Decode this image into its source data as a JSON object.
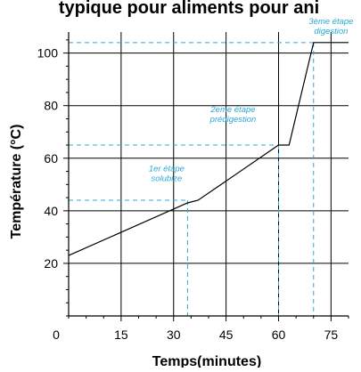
{
  "chart_data": {
    "type": "line",
    "title": "typique pour aliments pour ani",
    "xlabel": "Temps(minutes)",
    "ylabel": "Température (°C)",
    "xlim": [
      0,
      80
    ],
    "ylim": [
      0,
      108
    ],
    "x_ticks": [
      15,
      30,
      45,
      60,
      75
    ],
    "x_origin_label": "0",
    "y_ticks": [
      20,
      40,
      60,
      80,
      100
    ],
    "grid": true,
    "series": [
      {
        "x": [
          0,
          34,
          37,
          60,
          63,
          70,
          80
        ],
        "y": [
          23,
          43,
          44,
          65,
          65,
          104,
          104
        ]
      }
    ],
    "reference_lines": [
      {
        "x": 34,
        "y": 44
      },
      {
        "x": 60,
        "y": 65
      },
      {
        "x": 70,
        "y": 104
      }
    ],
    "annotations": [
      {
        "lines": [
          "1er étape",
          "solubize"
        ],
        "x": 28,
        "y": 55
      },
      {
        "lines": [
          "2eme étape",
          "prédigestion"
        ],
        "x": 47,
        "y": 77.5
      },
      {
        "lines": [
          "3ème étape",
          "digestion"
        ],
        "x": 75,
        "y": 111
      }
    ],
    "line_color": "#000000",
    "reference_color": "#29a9d8",
    "annotation_color": "#29a9d8",
    "grid_color": "#000000"
  }
}
